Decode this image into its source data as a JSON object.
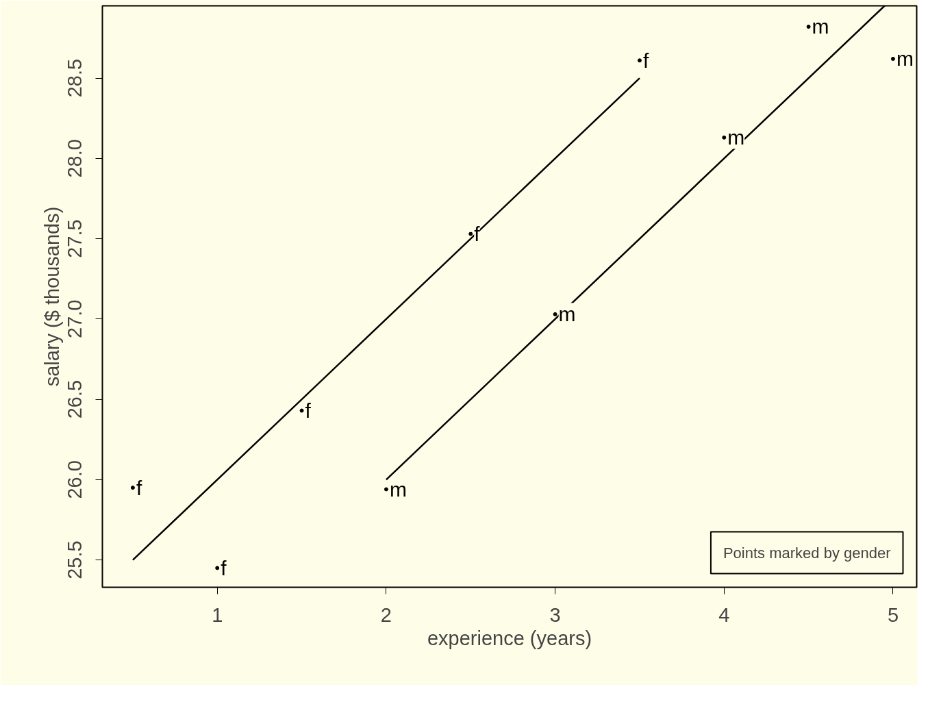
{
  "chart_data": {
    "type": "scatter",
    "xlabel": "experience (years)",
    "ylabel": "salary ($ thousands)",
    "xlim": [
      0.32,
      5.14
    ],
    "ylim": [
      25.33,
      28.95
    ],
    "xticks": [
      1,
      2,
      3,
      4,
      5
    ],
    "yticks": [
      25.5,
      {
        "value": 26,
        "label": "26.0"
      },
      26.5,
      {
        "value": 27,
        "label": "27.0"
      },
      27.5,
      {
        "value": 28,
        "label": "28.0"
      },
      28.5
    ],
    "grid": false,
    "series": [
      {
        "name": "f",
        "color": "#000000",
        "marker": "circle",
        "x": [
          0.5,
          1,
          1.5,
          2.5,
          3.5
        ],
        "values": [
          25.95,
          25.45,
          26.43,
          27.53,
          28.61
        ]
      },
      {
        "name": "m",
        "color": "#000000",
        "marker": "circle",
        "x": [
          2,
          3,
          4,
          4.5,
          5
        ],
        "values": [
          25.94,
          27.03,
          28.13,
          28.82,
          28.62
        ]
      },
      {
        "type": "line",
        "color": "#000000",
        "x": [
          0.5,
          3.5
        ],
        "values": [
          25.5,
          28.5
        ]
      },
      {
        "type": "line",
        "color": "#000000",
        "x": [
          2,
          4.95
        ],
        "values": [
          26,
          28.95
        ]
      }
    ],
    "annotations": [
      "Points marked by gender"
    ]
  }
}
